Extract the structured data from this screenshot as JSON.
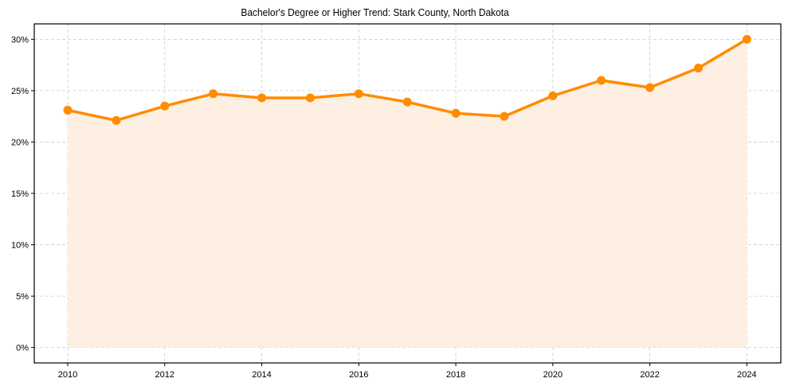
{
  "chart_data": {
    "type": "line",
    "title": "Bachelor's Degree or Higher Trend: Stark County, North Dakota",
    "xlabel": "",
    "ylabel": "",
    "x": [
      2010,
      2011,
      2012,
      2013,
      2014,
      2015,
      2016,
      2017,
      2018,
      2019,
      2020,
      2021,
      2022,
      2023,
      2024
    ],
    "series": [
      {
        "name": "Bachelor's Degree or Higher",
        "values": [
          23.1,
          22.1,
          23.5,
          24.7,
          24.3,
          24.3,
          24.7,
          23.9,
          22.8,
          22.5,
          24.5,
          26.0,
          25.3,
          27.2,
          30.0
        ],
        "color": "#FF8C00",
        "fill": "#FDF0E3"
      }
    ],
    "xticks": [
      2010,
      2012,
      2014,
      2016,
      2018,
      2020,
      2022,
      2024
    ],
    "yticks": [
      0,
      5,
      10,
      15,
      20,
      25,
      30
    ],
    "ytick_labels": [
      "0%",
      "5%",
      "10%",
      "15%",
      "20%",
      "25%",
      "30%"
    ],
    "xlim": [
      2009.31,
      2024.7
    ],
    "ylim": [
      -1.5,
      31.5
    ],
    "grid": true,
    "legend": null
  }
}
